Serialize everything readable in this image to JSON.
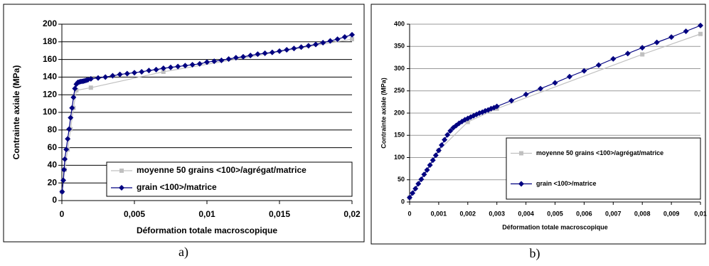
{
  "chart_data": [
    {
      "type": "line",
      "caption": "a)",
      "ylabel": "Contrainte axiale (MPa)",
      "xlabel": "Déformation totale macroscopique",
      "xlim": [
        0,
        0.02
      ],
      "ylim": [
        0,
        200
      ],
      "xticks": [
        0,
        {
          "value": 0.005,
          "label": "0,005"
        },
        {
          "value": 0.01,
          "label": "0,01"
        },
        {
          "value": 0.015,
          "label": "0,015"
        },
        {
          "value": 0.02,
          "label": "0,02"
        }
      ],
      "yticks": [
        0,
        20,
        40,
        60,
        80,
        100,
        120,
        140,
        160,
        180,
        200
      ],
      "grid": true,
      "legend": "lower right",
      "series": [
        {
          "name": "moyenne 50 grains <100>/agrégat/matrice",
          "color": "#c0c0c0",
          "marker": "square",
          "x": [
            0,
            0.0002,
            0.0004,
            0.0006,
            0.0008,
            0.001,
            0.002,
            0.007,
            0.02
          ],
          "values": [
            10,
            35,
            58,
            81,
            105,
            125,
            128,
            146,
            183
          ]
        },
        {
          "name": "grain <100>/matrice",
          "color": "#000080",
          "marker": "diamond",
          "x": [
            2e-05,
            0.0001,
            0.00015,
            0.0002,
            0.0003,
            0.0004,
            0.0005,
            0.0006,
            0.0007,
            0.0008,
            0.0009,
            0.001,
            0.0011,
            0.0012,
            0.0013,
            0.0014,
            0.0015,
            0.0016,
            0.0017,
            0.0018,
            0.002,
            0.0025,
            0.003,
            0.0035,
            0.004,
            0.0045,
            0.005,
            0.0055,
            0.006,
            0.0065,
            0.007,
            0.0075,
            0.008,
            0.0085,
            0.009,
            0.0095,
            0.01,
            0.0105,
            0.011,
            0.0115,
            0.012,
            0.0125,
            0.013,
            0.0135,
            0.014,
            0.0145,
            0.015,
            0.0155,
            0.016,
            0.0165,
            0.017,
            0.0175,
            0.018,
            0.0185,
            0.019,
            0.0195,
            0.02
          ],
          "values": [
            10,
            23,
            35,
            47,
            58,
            70,
            81,
            94,
            105,
            117,
            127,
            132,
            134,
            134.5,
            135,
            135.2,
            135.5,
            136,
            136.5,
            137,
            138,
            139,
            140,
            141.5,
            143,
            144,
            145,
            146,
            147.5,
            148.5,
            150,
            151,
            152,
            153,
            154,
            155,
            157,
            158,
            159,
            160.5,
            162,
            163,
            164.5,
            166,
            167,
            168,
            169.5,
            171,
            172.5,
            174,
            175.5,
            177,
            179,
            181,
            183,
            185.5,
            188
          ]
        }
      ]
    },
    {
      "type": "line",
      "caption": "b)",
      "ylabel": "Contrainte axiale (MPa)",
      "xlabel": "Déformation totale macroscopique",
      "xlim": [
        0,
        0.01
      ],
      "ylim": [
        0,
        400
      ],
      "xticks": [
        0,
        {
          "value": 0.001,
          "label": "0,001"
        },
        {
          "value": 0.002,
          "label": "0,002"
        },
        {
          "value": 0.003,
          "label": "0,003"
        },
        {
          "value": 0.004,
          "label": "0,004"
        },
        {
          "value": 0.005,
          "label": "0,005"
        },
        {
          "value": 0.006,
          "label": "0,006"
        },
        {
          "value": 0.007,
          "label": "0,007"
        },
        {
          "value": 0.008,
          "label": "0,008"
        },
        {
          "value": 0.009,
          "label": "0,009"
        },
        {
          "value": 0.01,
          "label": "0,01"
        }
      ],
      "yticks": [
        0,
        50,
        100,
        150,
        200,
        250,
        300,
        350,
        400
      ],
      "grid": true,
      "legend": "lower right",
      "series": [
        {
          "name": "moyenne 50 grains <100>/agrégat/matrice",
          "color": "#c0c0c0",
          "marker": "square",
          "x": [
            0,
            0.001,
            0.002,
            0.003,
            0.008,
            0.01
          ],
          "values": [
            10,
            116,
            180,
            210,
            332,
            378
          ]
        },
        {
          "name": "grain <100>/matrice",
          "color": "#000080",
          "marker": "diamond",
          "x": [
            0,
            0.0001,
            0.0002,
            0.0003,
            0.0004,
            0.0005,
            0.0006,
            0.0007,
            0.0008,
            0.0009,
            0.001,
            0.0011,
            0.0012,
            0.0013,
            0.0014,
            0.0015,
            0.0016,
            0.0017,
            0.0018,
            0.0019,
            0.002,
            0.0021,
            0.0022,
            0.0023,
            0.0024,
            0.0025,
            0.0026,
            0.0027,
            0.0028,
            0.0029,
            0.003,
            0.0035,
            0.004,
            0.0045,
            0.005,
            0.0055,
            0.006,
            0.0065,
            0.007,
            0.0075,
            0.008,
            0.0085,
            0.009,
            0.0095,
            0.01
          ],
          "values": [
            10,
            20,
            30,
            41,
            51,
            62,
            72,
            83,
            94,
            105,
            116,
            128,
            140,
            151,
            160,
            167,
            172,
            177,
            181,
            185,
            188,
            191,
            194,
            197,
            200,
            202,
            205,
            207,
            210,
            212,
            215,
            228,
            242,
            255,
            268,
            282,
            295,
            308,
            322,
            334,
            347,
            359,
            371,
            384,
            397
          ]
        }
      ]
    }
  ]
}
